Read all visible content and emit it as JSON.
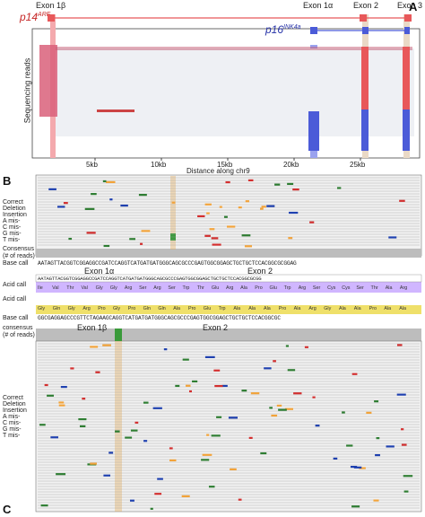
{
  "figure": {
    "panel_a": {
      "letter": "A",
      "exon_labels": [
        "Exon 1β",
        "Exon 1α",
        "Exon 2",
        "Exon 3"
      ],
      "gene_p14": "p14",
      "gene_p14_sup": "ARF",
      "gene_p16": "p16",
      "gene_p16_sup": "INK4a",
      "y_label": "Sequencing reads",
      "x_label": "Distance along chr9",
      "x_ticks": [
        "5kb",
        "10kb",
        "15kb",
        "20kb",
        "25kb"
      ],
      "colors": {
        "red": "#e8585a",
        "blue": "#4b5bd8",
        "pink_band": "#f4a9ad",
        "blue_band": "#9aa2ef",
        "tan_band": "#ead9c6"
      }
    },
    "panel_b": {
      "letter": "B",
      "legend": [
        "Correct",
        "Deletion",
        "Insertion",
        "A mis-",
        "C mis-",
        "G mis-",
        "T mis-"
      ],
      "consensus_label": "Consensus",
      "consensus_sub": "(# of reads)",
      "basecall_label": "Base call",
      "basecall_seq": "AATAGTTACGGTCGGAGGCCGATCCAGGTCATGATGATGGGCAGCGCCCGAGTGGCGGAGCTGCTGCTCCACGGCGCGGAG",
      "exon_left": "Exon 1α",
      "exon_right": "Exon 2",
      "acid_label": "Acid call",
      "acid_seq": "AATAGTTACGGTCGGAGGCCGATCCAGGTCATGATGATGGGCAGCGCCCGAGTGGCGGAGCTGCTGCTCCACGGCGCGG",
      "acid_codons": [
        "Ile",
        "Val",
        "Thr",
        "Val",
        "Gly",
        "Gly",
        "Arg",
        "Ser",
        "Arg",
        "Ser",
        "Trp",
        "Thr",
        "Glu",
        "Arg",
        "Ala",
        "Pro",
        "Glu",
        "Trp",
        "Arg",
        "Ser",
        "Cys",
        "Cys",
        "Ser",
        "Thr",
        "Ala",
        "Arg"
      ]
    },
    "panel_c": {
      "letter": "C",
      "acid_label": "Acid call",
      "acid_codons": [
        "Gly",
        "Gln",
        "Gly",
        "Arg",
        "Pro",
        "Gly",
        "Pro",
        "Gln",
        "Gln",
        "Ala",
        "Pro",
        "Glu",
        "Trp",
        "Ala",
        "Ala",
        "Ala",
        "Pro",
        "Ala",
        "Arg",
        "Gly",
        "Ala",
        "Ala",
        "Pro",
        "Ala",
        "Ala"
      ],
      "basecall_label": "Base call",
      "basecall_seq": "GGCGAGGAGCCCGTTCTAGAAGCAGGTCATGATGATGGGCAGCGCCCGAGTGGCGGAGCTGCTGCTCCACGGCGC",
      "consensus_label": "consensus",
      "consensus_sub": "(# of reads)",
      "exon_left": "Exon 1β",
      "exon_right": "Exon 2",
      "legend": [
        "Correct",
        "Deletion",
        "Insertion",
        "A mis-",
        "C mis-",
        "G mis-",
        "T mis-"
      ]
    }
  }
}
